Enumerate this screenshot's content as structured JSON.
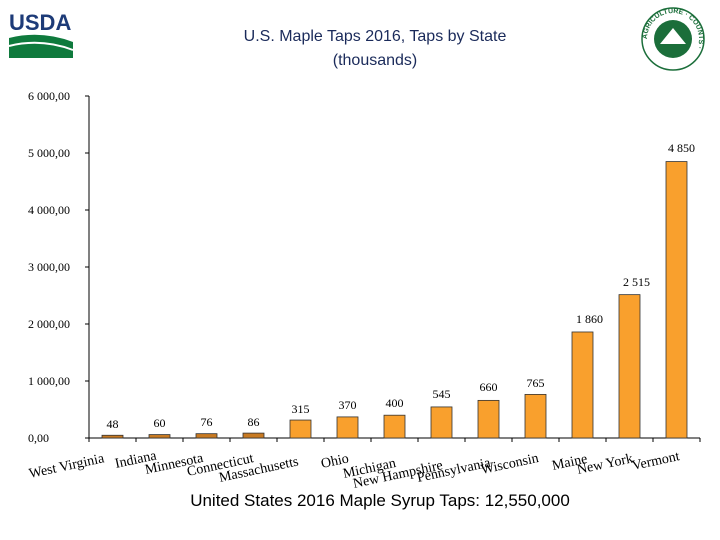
{
  "header": {
    "logo_text": "USDA",
    "seal_text": "AGRICULTURE · COUNTS ·"
  },
  "chart_data": {
    "type": "bar",
    "title": "U.S. Maple Taps 2016, Taps by State",
    "subtitle": "(thousands)",
    "categories": [
      "West Virginia",
      "Indiana",
      "Minnesota",
      "Connecticut",
      "Massachusetts",
      "Ohio",
      "Michigan",
      "New Hampshire",
      "Pennsylvania",
      "Wisconsin",
      "Maine",
      "New York",
      "Vermont"
    ],
    "values": [
      48,
      60,
      76,
      86,
      315,
      370,
      400,
      545,
      660,
      765,
      1860,
      2515,
      4850
    ],
    "value_labels": [
      "48",
      "60",
      "76",
      "86",
      "315",
      "370",
      "400",
      "545",
      "660",
      "765",
      "1 860",
      "2 515",
      "4 850"
    ],
    "ylim": [
      0,
      6000
    ],
    "yticks": [
      0,
      1000,
      2000,
      3000,
      4000,
      5000,
      6000
    ],
    "ytick_labels": [
      "0,00",
      "1 000,00",
      "2 000,00",
      "3 000,00",
      "4 000,00",
      "5 000,00",
      "6 000,00"
    ],
    "xlabel": "",
    "ylabel": "",
    "grid": false,
    "legend": false,
    "bar_color": "#f9a02d",
    "small_bar_color": "#c87a22",
    "footer": "United States 2016 Maple Syrup Taps: 12,550,000"
  }
}
